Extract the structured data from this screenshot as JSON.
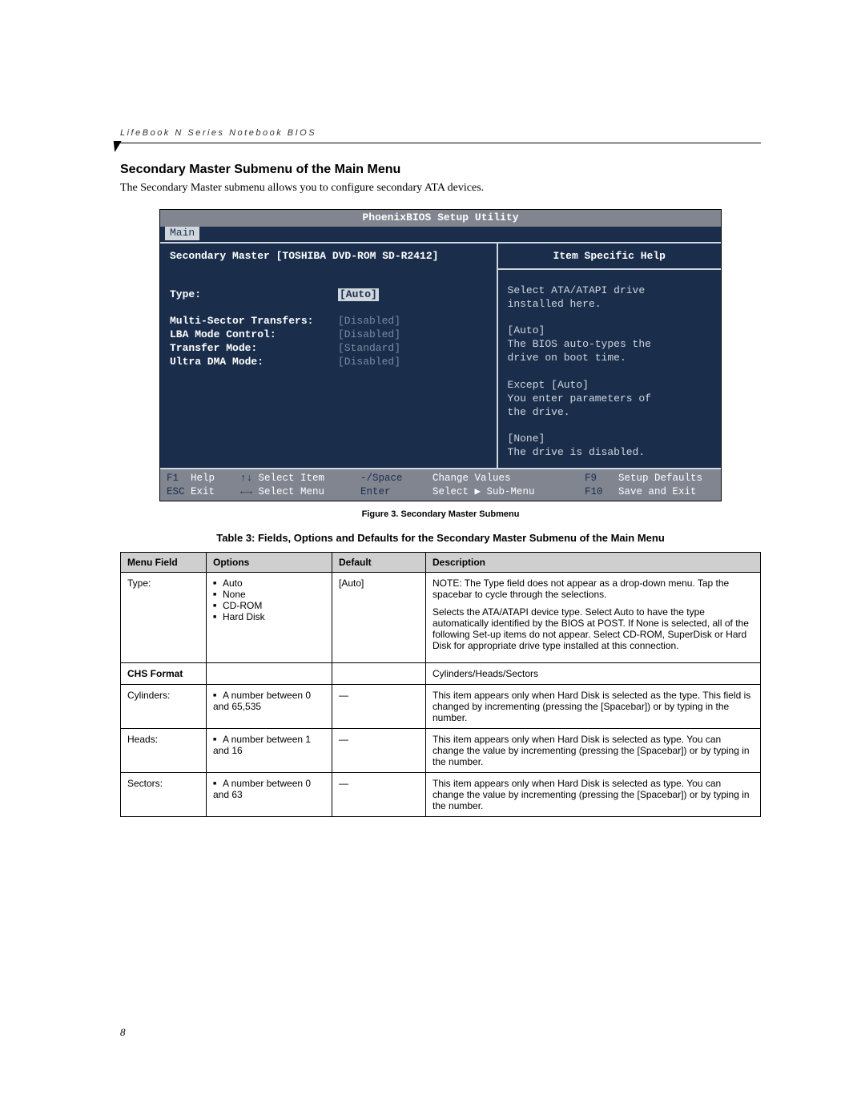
{
  "header": {
    "breadcrumb": "LifeBook N Series Notebook BIOS"
  },
  "section": {
    "title": "Secondary Master Submenu of the Main Menu",
    "intro": "The Secondary Master submenu allows you to configure secondary ATA devices."
  },
  "bios": {
    "title": "PhoenixBIOS Setup Utility",
    "active_menu": "Main",
    "subtitle": "Secondary Master [TOSHIBA DVD-ROM SD-R2412]",
    "help_title": "Item Specific Help",
    "fields": {
      "type_label": "Type:",
      "type_value": "[Auto]",
      "multi_label": "Multi-Sector Transfers:",
      "multi_value": "[Disabled]",
      "lba_label": "LBA Mode Control:",
      "lba_value": "[Disabled]",
      "transfer_label": "Transfer Mode:",
      "transfer_value": "[Standard]",
      "ultra_label": "Ultra DMA Mode:",
      "ultra_value": "[Disabled]"
    },
    "help_text": {
      "l1": "Select ATA/ATAPI drive",
      "l2": "installed here.",
      "l3": "[Auto]",
      "l4": "The BIOS auto-types the",
      "l5": "drive on boot time.",
      "l6": "Except [Auto]",
      "l7": "You enter parameters of",
      "l8": "the drive.",
      "l9": "[None]",
      "l10": "The drive is disabled."
    },
    "footer": {
      "f1": "F1",
      "help": "Help",
      "arrows_v": "↑↓",
      "select_item": "Select Item",
      "space": "-/Space",
      "change_values": "Change Values",
      "f9": "F9",
      "setup_defaults": "Setup Defaults",
      "esc": "ESC",
      "exit": "Exit",
      "arrows_h": "←→",
      "select_menu": "Select Menu",
      "enter": "Enter",
      "select_sub": "Select ▶ Sub-Menu",
      "f10": "F10",
      "save_exit": "Save and Exit"
    }
  },
  "figure_caption": "Figure 3.  Secondary Master Submenu",
  "table_caption": "Table 3: Fields, Options and Defaults for the Secondary Master Submenu of the Main Menu",
  "table": {
    "headers": {
      "menu": "Menu Field",
      "options": "Options",
      "default": "Default",
      "description": "Description"
    },
    "rows": {
      "type": {
        "menu": "Type:",
        "opts": [
          "Auto",
          "None",
          "CD-ROM",
          "Hard Disk"
        ],
        "default": "[Auto]",
        "desc1": "NOTE: The Type field does not appear as a drop-down menu. Tap the spacebar to cycle through the selections.",
        "desc2": "Selects the ATA/ATAPI device type. Select Auto to have the type automatically identified by the BIOS at POST. If None is selected, all of the following Set-up items do not appear. Select CD-ROM, SuperDisk or Hard Disk for appropriate drive type installed at this connection."
      },
      "chs": {
        "menu": "CHS Format",
        "desc": "Cylinders/Heads/Sectors"
      },
      "cylinders": {
        "menu": "Cylinders:",
        "opts": [
          "A number between 0 and 65,535"
        ],
        "default": "—",
        "desc": "This item appears only when Hard Disk is selected as the type. This field is changed by incrementing (pressing the [Spacebar]) or by typing in the number."
      },
      "heads": {
        "menu": "Heads:",
        "opts": [
          "A number between 1 and 16"
        ],
        "default": "—",
        "desc": "This item appears only when Hard Disk is selected as type. You can change the value by incrementing (pressing the [Spacebar]) or by typing in the number."
      },
      "sectors": {
        "menu": "Sectors:",
        "opts": [
          "A number between 0 and 63"
        ],
        "default": "—",
        "desc": "This item appears only when Hard Disk is selected as type. You can change the value by incrementing (pressing the [Spacebar]) or by typing in the number."
      }
    }
  },
  "page_number": "8",
  "colors": {
    "bios_bg": "#1a2e4c",
    "bios_bar": "#808590",
    "bios_light": "#cfd6dc",
    "table_header": "#cfcfcf"
  }
}
